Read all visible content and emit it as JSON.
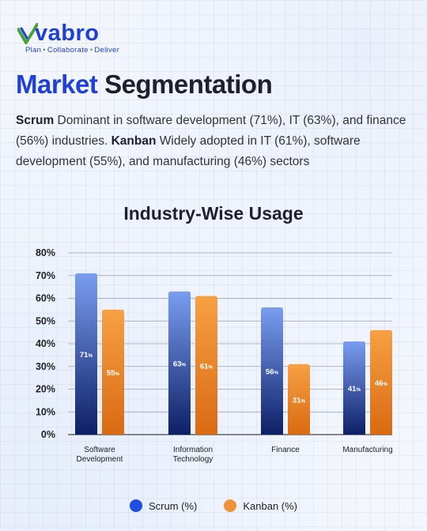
{
  "brand": {
    "name": "vabro",
    "tagline": [
      "Plan",
      "Collaborate",
      "Deliver"
    ],
    "color": "#1e3fd8",
    "check_color": "#4aa13c"
  },
  "headline": {
    "accent": "Market",
    "rest": "Segmentation"
  },
  "summary": {
    "scrum_label": "Scrum",
    "scrum_text": " Dominant in software development (71%), IT (63%), and finance (56%) industries. ",
    "kanban_label": "Kanban",
    "kanban_text": " Widely adopted in IT (61%), software development (55%), and manufacturing (46%) sectors"
  },
  "chart_data": {
    "type": "bar",
    "title": "Industry-Wise Usage",
    "categories": [
      [
        "Software",
        "Development"
      ],
      [
        "Information",
        "Technology"
      ],
      [
        "Finance"
      ],
      [
        "Manufacturing"
      ]
    ],
    "series": [
      {
        "name": "Scrum (%)",
        "values": [
          71,
          63,
          56,
          41
        ],
        "color_top": "#7a9df0",
        "color_bottom": "#0d1f66"
      },
      {
        "name": "Kanban (%)",
        "values": [
          55,
          61,
          31,
          46
        ],
        "color_top": "#f7a044",
        "color_bottom": "#d96a12"
      }
    ],
    "data_labels": [
      [
        "71%",
        "63%",
        "56%",
        "41%"
      ],
      [
        "55%",
        "61%",
        "31%",
        "46%"
      ]
    ],
    "y_ticks": [
      "0%",
      "10%",
      "20%",
      "30%",
      "40%",
      "50%",
      "60%",
      "70%",
      "80%"
    ],
    "ylim": [
      0,
      80
    ],
    "grid": true,
    "legend_position": "bottom"
  },
  "legend": [
    {
      "label": "Scrum (%)",
      "color": "#1f4fe0"
    },
    {
      "label": "Kanban (%)",
      "color": "#f0923a"
    }
  ]
}
